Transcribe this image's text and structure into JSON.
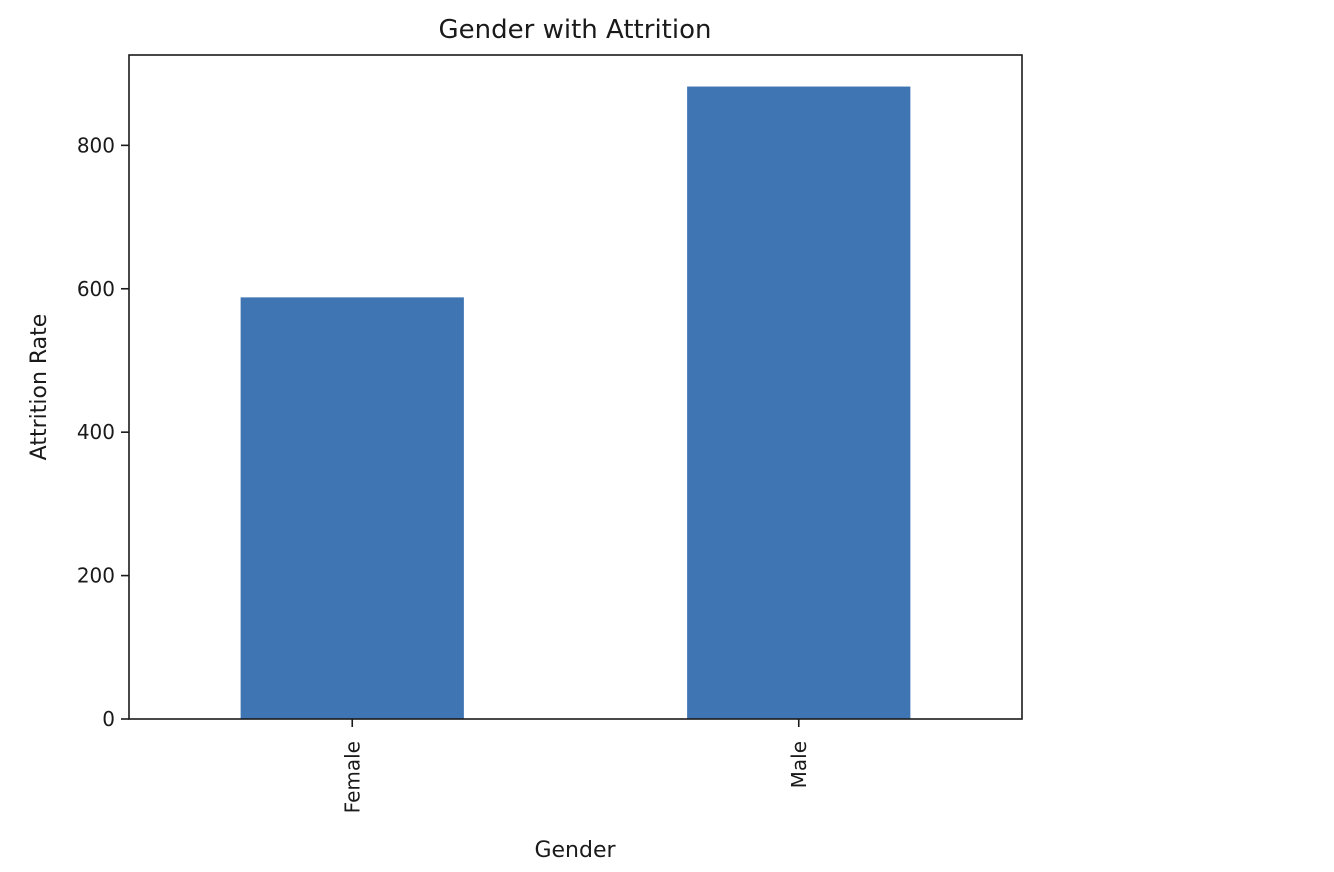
{
  "chart_data": {
    "type": "bar",
    "title": "Gender with Attrition",
    "xlabel": "Gender",
    "ylabel": "Attrition Rate",
    "categories": [
      "Female",
      "Male"
    ],
    "values": [
      588,
      882
    ],
    "ylim": [
      0,
      926
    ],
    "yticks": [
      0,
      200,
      400,
      600,
      800
    ],
    "xtick_rotation": "vertical",
    "grid": false,
    "legend": "none",
    "bar_color": "#3e75b2"
  }
}
